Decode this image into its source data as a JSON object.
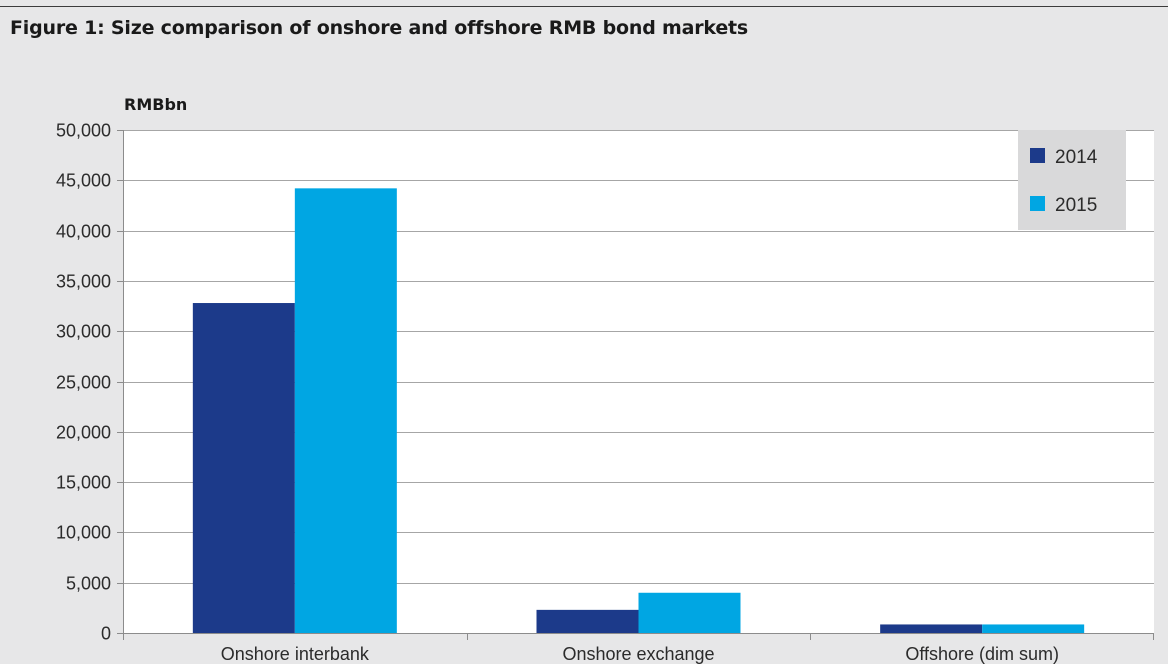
{
  "figure": {
    "title": "Figure 1: Size comparison of onshore and offshore RMB bond markets"
  },
  "chart_data": {
    "type": "bar",
    "title": "Figure 1: Size comparison of onshore and offshore RMB bond markets",
    "ylabel": "RMBbn",
    "xlabel": "",
    "categories": [
      "Onshore interbank",
      "Onshore exchange",
      "Offshore (dim sum)"
    ],
    "series": [
      {
        "name": "2014",
        "color": "#1c3a8a",
        "values": [
          32800,
          2300,
          850
        ]
      },
      {
        "name": "2015",
        "color": "#00a6e3",
        "values": [
          44200,
          4000,
          850
        ]
      }
    ],
    "ylim": [
      0,
      50000
    ],
    "yticks": [
      0,
      5000,
      10000,
      15000,
      20000,
      25000,
      30000,
      35000,
      40000,
      45000,
      50000
    ],
    "ytick_labels": [
      "0",
      "5,000",
      "10,000",
      "15,000",
      "20,000",
      "25,000",
      "30,000",
      "35,000",
      "40,000",
      "45,000",
      "50,000"
    ],
    "grid": true,
    "legend_position": "top-right",
    "colors": {
      "background": "#e7e7e8",
      "plot_area": "#ffffff",
      "legend_box": "#d9d9da",
      "gridline": "#a6a6a6"
    }
  }
}
